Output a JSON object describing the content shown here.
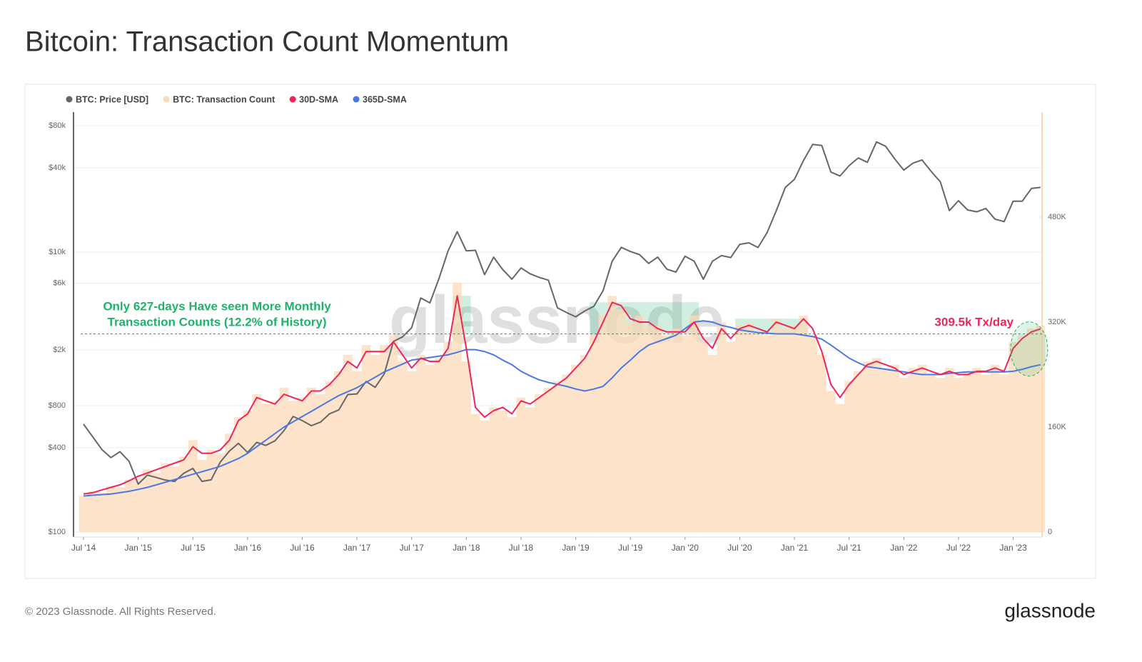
{
  "title": "Bitcoin: Transaction Count Momentum",
  "footer": "© 2023 Glassnode. All Rights Reserved.",
  "logo": "glassnode",
  "chart_data": {
    "type": "line",
    "watermark": "glassnode",
    "ylog": true,
    "ylim": [
      100,
      100000
    ],
    "yticks": [
      {
        "value": 100,
        "label": "$100"
      },
      {
        "value": 400,
        "label": "$400"
      },
      {
        "value": 800,
        "label": "$800"
      },
      {
        "value": 2000,
        "label": "$2k"
      },
      {
        "value": 6000,
        "label": "$6k"
      },
      {
        "value": 10000,
        "label": "$10k"
      },
      {
        "value": 40000,
        "label": "$40k"
      },
      {
        "value": 80000,
        "label": "$80k"
      }
    ],
    "y2lim": [
      0,
      640000
    ],
    "y2ticks": [
      0,
      {
        "value": 160000,
        "label": "160K"
      },
      {
        "value": 320000,
        "label": "320K"
      },
      {
        "value": 480000,
        "label": "480K"
      }
    ],
    "xticks": [
      {
        "value": "2014-07",
        "label": "Jul '14"
      },
      {
        "value": "2015-01",
        "label": "Jan '15"
      },
      {
        "value": "2015-07",
        "label": "Jul '15"
      },
      {
        "value": "2016-01",
        "label": "Jan '16"
      },
      {
        "value": "2016-07",
        "label": "Jul '16"
      },
      {
        "value": "2017-01",
        "label": "Jan '17"
      },
      {
        "value": "2017-07",
        "label": "Jul '17"
      },
      {
        "value": "2018-01",
        "label": "Jan '18"
      },
      {
        "value": "2018-07",
        "label": "Jul '18"
      },
      {
        "value": "2019-01",
        "label": "Jan '19"
      },
      {
        "value": "2019-07",
        "label": "Jul '19"
      },
      {
        "value": "2020-01",
        "label": "Jan '20"
      },
      {
        "value": "2020-07",
        "label": "Jul '20"
      },
      {
        "value": "2021-01",
        "label": "Jan '21"
      },
      {
        "value": "2021-07",
        "label": "Jul '21"
      },
      {
        "value": "2022-01",
        "label": "Jan '22"
      },
      {
        "value": "2022-07",
        "label": "Jul '22"
      },
      {
        "value": "2023-01",
        "label": "Jan '23"
      }
    ],
    "x": [
      "2014-07",
      "2014-08",
      "2014-09",
      "2014-10",
      "2014-11",
      "2014-12",
      "2015-01",
      "2015-02",
      "2015-03",
      "2015-04",
      "2015-05",
      "2015-06",
      "2015-07",
      "2015-08",
      "2015-09",
      "2015-10",
      "2015-11",
      "2015-12",
      "2016-01",
      "2016-02",
      "2016-03",
      "2016-04",
      "2016-05",
      "2016-06",
      "2016-07",
      "2016-08",
      "2016-09",
      "2016-10",
      "2016-11",
      "2016-12",
      "2017-01",
      "2017-02",
      "2017-03",
      "2017-04",
      "2017-05",
      "2017-06",
      "2017-07",
      "2017-08",
      "2017-09",
      "2017-10",
      "2017-11",
      "2017-12",
      "2018-01",
      "2018-02",
      "2018-03",
      "2018-04",
      "2018-05",
      "2018-06",
      "2018-07",
      "2018-08",
      "2018-09",
      "2018-10",
      "2018-11",
      "2018-12",
      "2019-01",
      "2019-02",
      "2019-03",
      "2019-04",
      "2019-05",
      "2019-06",
      "2019-07",
      "2019-08",
      "2019-09",
      "2019-10",
      "2019-11",
      "2019-12",
      "2020-01",
      "2020-02",
      "2020-03",
      "2020-04",
      "2020-05",
      "2020-06",
      "2020-07",
      "2020-08",
      "2020-09",
      "2020-10",
      "2020-11",
      "2020-12",
      "2021-01",
      "2021-02",
      "2021-03",
      "2021-04",
      "2021-05",
      "2021-06",
      "2021-07",
      "2021-08",
      "2021-09",
      "2021-10",
      "2021-11",
      "2021-12",
      "2022-01",
      "2022-02",
      "2022-03",
      "2022-04",
      "2022-05",
      "2022-06",
      "2022-07",
      "2022-08",
      "2022-09",
      "2022-10",
      "2022-11",
      "2022-12",
      "2023-01",
      "2023-02",
      "2023-03",
      "2023-04"
    ],
    "series": [
      {
        "name": "BTC: Price [USD]",
        "color": "#666666",
        "style": "line",
        "values": [
          590,
          480,
          390,
          340,
          375,
          320,
          220,
          255,
          245,
          235,
          230,
          263,
          285,
          230,
          236,
          315,
          378,
          430,
          370,
          437,
          416,
          448,
          530,
          670,
          625,
          575,
          610,
          700,
          745,
          960,
          970,
          1190,
          1080,
          1350,
          2300,
          2480,
          2880,
          4700,
          4340,
          6470,
          10200,
          14000,
          10200,
          10300,
          6900,
          9200,
          7500,
          6400,
          7700,
          7000,
          6600,
          6300,
          4000,
          3700,
          3450,
          3800,
          4100,
          5300,
          8600,
          10800,
          10100,
          9600,
          8300,
          9200,
          7550,
          7200,
          9350,
          8600,
          6400,
          8600,
          9450,
          9140,
          11350,
          11650,
          10780,
          13800,
          19700,
          29000,
          33100,
          45200,
          58800,
          57700,
          37300,
          35000,
          41500,
          47100,
          43800,
          61300,
          57000,
          46300,
          38500,
          43200,
          45500,
          37700,
          31800,
          19800,
          23300,
          20000,
          19400,
          20500,
          17200,
          16500,
          23100,
          23100,
          28500,
          29000
        ]
      },
      {
        "name": "BTC: Transaction Count",
        "color": "#fcd9b8",
        "style": "bar",
        "axis": "y2",
        "values": [
          55000,
          62000,
          60000,
          70000,
          68000,
          80000,
          82000,
          95000,
          90000,
          105000,
          100000,
          115000,
          140000,
          110000,
          125000,
          120000,
          150000,
          175000,
          185000,
          210000,
          195000,
          200000,
          220000,
          200000,
          205000,
          220000,
          210000,
          230000,
          245000,
          270000,
          245000,
          285000,
          270000,
          285000,
          300000,
          260000,
          245000,
          270000,
          255000,
          265000,
          290000,
          380000,
          260000,
          180000,
          170000,
          190000,
          185000,
          175000,
          205000,
          190000,
          210000,
          220000,
          230000,
          240000,
          255000,
          270000,
          300000,
          330000,
          360000,
          340000,
          320000,
          330000,
          315000,
          315000,
          300000,
          310000,
          300000,
          330000,
          290000,
          270000,
          320000,
          290000,
          315000,
          320000,
          305000,
          300000,
          325000,
          310000,
          315000,
          330000,
          300000,
          270000,
          215000,
          195000,
          230000,
          245000,
          260000,
          265000,
          250000,
          255000,
          235000,
          250000,
          255000,
          240000,
          235000,
          250000,
          235000,
          245000,
          250000,
          240000,
          255000,
          240000,
          290000,
          300000,
          310000,
          315000
        ]
      },
      {
        "name": "30D-SMA",
        "color": "#f0245a",
        "style": "line",
        "axis": "y2",
        "values": [
          58000,
          60000,
          64000,
          68000,
          72000,
          78000,
          85000,
          90000,
          95000,
          100000,
          105000,
          110000,
          130000,
          120000,
          120000,
          125000,
          140000,
          170000,
          180000,
          205000,
          200000,
          195000,
          210000,
          205000,
          200000,
          215000,
          215000,
          225000,
          240000,
          260000,
          250000,
          275000,
          275000,
          275000,
          290000,
          270000,
          250000,
          265000,
          260000,
          260000,
          280000,
          360000,
          280000,
          190000,
          175000,
          185000,
          190000,
          180000,
          200000,
          195000,
          205000,
          215000,
          225000,
          235000,
          250000,
          265000,
          290000,
          320000,
          350000,
          345000,
          325000,
          320000,
          320000,
          310000,
          305000,
          305000,
          305000,
          320000,
          295000,
          280000,
          310000,
          295000,
          310000,
          315000,
          310000,
          305000,
          320000,
          315000,
          310000,
          325000,
          310000,
          275000,
          225000,
          205000,
          225000,
          240000,
          255000,
          260000,
          255000,
          250000,
          240000,
          245000,
          250000,
          245000,
          240000,
          245000,
          240000,
          240000,
          245000,
          245000,
          250000,
          245000,
          280000,
          295000,
          305000,
          309500
        ]
      },
      {
        "name": "365D-SMA",
        "color": "#4a78e6",
        "style": "line",
        "axis": "y2",
        "values": [
          55000,
          56000,
          57000,
          58000,
          60000,
          62000,
          65000,
          68000,
          72000,
          76000,
          80000,
          84000,
          88000,
          92000,
          96000,
          100000,
          106000,
          112000,
          120000,
          130000,
          140000,
          150000,
          160000,
          168000,
          176000,
          184000,
          192000,
          200000,
          208000,
          214000,
          220000,
          228000,
          236000,
          244000,
          250000,
          256000,
          262000,
          264000,
          266000,
          268000,
          270000,
          274000,
          278000,
          278000,
          275000,
          270000,
          262000,
          255000,
          245000,
          238000,
          232000,
          228000,
          225000,
          222000,
          218000,
          215000,
          218000,
          222000,
          235000,
          250000,
          262000,
          275000,
          285000,
          290000,
          295000,
          300000,
          310000,
          320000,
          322000,
          320000,
          315000,
          312000,
          308000,
          306000,
          304000,
          303000,
          302000,
          302000,
          302000,
          300000,
          298000,
          294000,
          285000,
          275000,
          265000,
          258000,
          252000,
          250000,
          248000,
          246000,
          244000,
          242000,
          240000,
          240000,
          240000,
          242000,
          243000,
          244000,
          244000,
          244000,
          244000,
          244000,
          245000,
          248000,
          252000,
          255000
        ]
      }
    ],
    "threshold": 302000,
    "threshold_color": "#1db36a",
    "highlight_ranges": [
      [
        "2017-12",
        "2018-01"
      ],
      [
        "2019-03",
        "2020-02"
      ],
      [
        "2020-07",
        "2021-02"
      ]
    ],
    "annotations": [
      {
        "text": "Only 627-days Have seen More Monthly",
        "color": "#1db36a"
      },
      {
        "text": "Transaction Counts (12.2% of History)",
        "color": "#1db36a"
      },
      {
        "text": "309.5k Tx/day",
        "color": "#f0245a"
      }
    ]
  }
}
